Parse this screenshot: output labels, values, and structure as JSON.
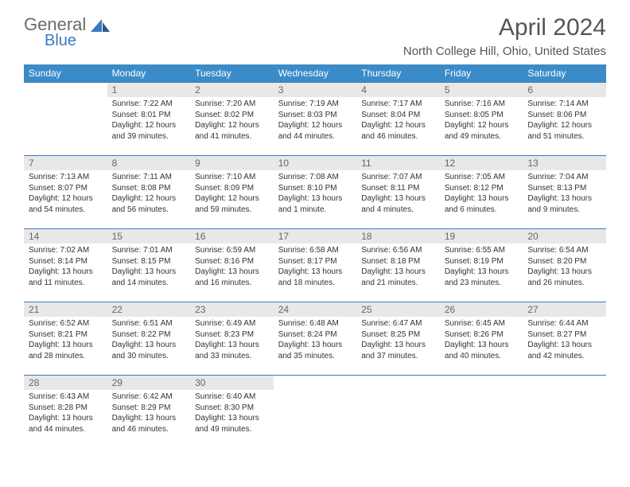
{
  "logo": {
    "text1": "General",
    "text2": "Blue"
  },
  "title": "April 2024",
  "location": "North College Hill, Ohio, United States",
  "colors": {
    "header_bg": "#3b8bc8",
    "header_text": "#ffffff",
    "daynum_bg": "#e8e8e8",
    "border": "#3b7bbf",
    "title_color": "#555555",
    "logo_gray": "#6b6b6b",
    "logo_blue": "#3b7bbf"
  },
  "weekdays": [
    "Sunday",
    "Monday",
    "Tuesday",
    "Wednesday",
    "Thursday",
    "Friday",
    "Saturday"
  ],
  "weeks": [
    [
      null,
      {
        "n": "1",
        "sr": "Sunrise: 7:22 AM",
        "ss": "Sunset: 8:01 PM",
        "d1": "Daylight: 12 hours",
        "d2": "and 39 minutes."
      },
      {
        "n": "2",
        "sr": "Sunrise: 7:20 AM",
        "ss": "Sunset: 8:02 PM",
        "d1": "Daylight: 12 hours",
        "d2": "and 41 minutes."
      },
      {
        "n": "3",
        "sr": "Sunrise: 7:19 AM",
        "ss": "Sunset: 8:03 PM",
        "d1": "Daylight: 12 hours",
        "d2": "and 44 minutes."
      },
      {
        "n": "4",
        "sr": "Sunrise: 7:17 AM",
        "ss": "Sunset: 8:04 PM",
        "d1": "Daylight: 12 hours",
        "d2": "and 46 minutes."
      },
      {
        "n": "5",
        "sr": "Sunrise: 7:16 AM",
        "ss": "Sunset: 8:05 PM",
        "d1": "Daylight: 12 hours",
        "d2": "and 49 minutes."
      },
      {
        "n": "6",
        "sr": "Sunrise: 7:14 AM",
        "ss": "Sunset: 8:06 PM",
        "d1": "Daylight: 12 hours",
        "d2": "and 51 minutes."
      }
    ],
    [
      {
        "n": "7",
        "sr": "Sunrise: 7:13 AM",
        "ss": "Sunset: 8:07 PM",
        "d1": "Daylight: 12 hours",
        "d2": "and 54 minutes."
      },
      {
        "n": "8",
        "sr": "Sunrise: 7:11 AM",
        "ss": "Sunset: 8:08 PM",
        "d1": "Daylight: 12 hours",
        "d2": "and 56 minutes."
      },
      {
        "n": "9",
        "sr": "Sunrise: 7:10 AM",
        "ss": "Sunset: 8:09 PM",
        "d1": "Daylight: 12 hours",
        "d2": "and 59 minutes."
      },
      {
        "n": "10",
        "sr": "Sunrise: 7:08 AM",
        "ss": "Sunset: 8:10 PM",
        "d1": "Daylight: 13 hours",
        "d2": "and 1 minute."
      },
      {
        "n": "11",
        "sr": "Sunrise: 7:07 AM",
        "ss": "Sunset: 8:11 PM",
        "d1": "Daylight: 13 hours",
        "d2": "and 4 minutes."
      },
      {
        "n": "12",
        "sr": "Sunrise: 7:05 AM",
        "ss": "Sunset: 8:12 PM",
        "d1": "Daylight: 13 hours",
        "d2": "and 6 minutes."
      },
      {
        "n": "13",
        "sr": "Sunrise: 7:04 AM",
        "ss": "Sunset: 8:13 PM",
        "d1": "Daylight: 13 hours",
        "d2": "and 9 minutes."
      }
    ],
    [
      {
        "n": "14",
        "sr": "Sunrise: 7:02 AM",
        "ss": "Sunset: 8:14 PM",
        "d1": "Daylight: 13 hours",
        "d2": "and 11 minutes."
      },
      {
        "n": "15",
        "sr": "Sunrise: 7:01 AM",
        "ss": "Sunset: 8:15 PM",
        "d1": "Daylight: 13 hours",
        "d2": "and 14 minutes."
      },
      {
        "n": "16",
        "sr": "Sunrise: 6:59 AM",
        "ss": "Sunset: 8:16 PM",
        "d1": "Daylight: 13 hours",
        "d2": "and 16 minutes."
      },
      {
        "n": "17",
        "sr": "Sunrise: 6:58 AM",
        "ss": "Sunset: 8:17 PM",
        "d1": "Daylight: 13 hours",
        "d2": "and 18 minutes."
      },
      {
        "n": "18",
        "sr": "Sunrise: 6:56 AM",
        "ss": "Sunset: 8:18 PM",
        "d1": "Daylight: 13 hours",
        "d2": "and 21 minutes."
      },
      {
        "n": "19",
        "sr": "Sunrise: 6:55 AM",
        "ss": "Sunset: 8:19 PM",
        "d1": "Daylight: 13 hours",
        "d2": "and 23 minutes."
      },
      {
        "n": "20",
        "sr": "Sunrise: 6:54 AM",
        "ss": "Sunset: 8:20 PM",
        "d1": "Daylight: 13 hours",
        "d2": "and 26 minutes."
      }
    ],
    [
      {
        "n": "21",
        "sr": "Sunrise: 6:52 AM",
        "ss": "Sunset: 8:21 PM",
        "d1": "Daylight: 13 hours",
        "d2": "and 28 minutes."
      },
      {
        "n": "22",
        "sr": "Sunrise: 6:51 AM",
        "ss": "Sunset: 8:22 PM",
        "d1": "Daylight: 13 hours",
        "d2": "and 30 minutes."
      },
      {
        "n": "23",
        "sr": "Sunrise: 6:49 AM",
        "ss": "Sunset: 8:23 PM",
        "d1": "Daylight: 13 hours",
        "d2": "and 33 minutes."
      },
      {
        "n": "24",
        "sr": "Sunrise: 6:48 AM",
        "ss": "Sunset: 8:24 PM",
        "d1": "Daylight: 13 hours",
        "d2": "and 35 minutes."
      },
      {
        "n": "25",
        "sr": "Sunrise: 6:47 AM",
        "ss": "Sunset: 8:25 PM",
        "d1": "Daylight: 13 hours",
        "d2": "and 37 minutes."
      },
      {
        "n": "26",
        "sr": "Sunrise: 6:45 AM",
        "ss": "Sunset: 8:26 PM",
        "d1": "Daylight: 13 hours",
        "d2": "and 40 minutes."
      },
      {
        "n": "27",
        "sr": "Sunrise: 6:44 AM",
        "ss": "Sunset: 8:27 PM",
        "d1": "Daylight: 13 hours",
        "d2": "and 42 minutes."
      }
    ],
    [
      {
        "n": "28",
        "sr": "Sunrise: 6:43 AM",
        "ss": "Sunset: 8:28 PM",
        "d1": "Daylight: 13 hours",
        "d2": "and 44 minutes."
      },
      {
        "n": "29",
        "sr": "Sunrise: 6:42 AM",
        "ss": "Sunset: 8:29 PM",
        "d1": "Daylight: 13 hours",
        "d2": "and 46 minutes."
      },
      {
        "n": "30",
        "sr": "Sunrise: 6:40 AM",
        "ss": "Sunset: 8:30 PM",
        "d1": "Daylight: 13 hours",
        "d2": "and 49 minutes."
      },
      null,
      null,
      null,
      null
    ]
  ]
}
